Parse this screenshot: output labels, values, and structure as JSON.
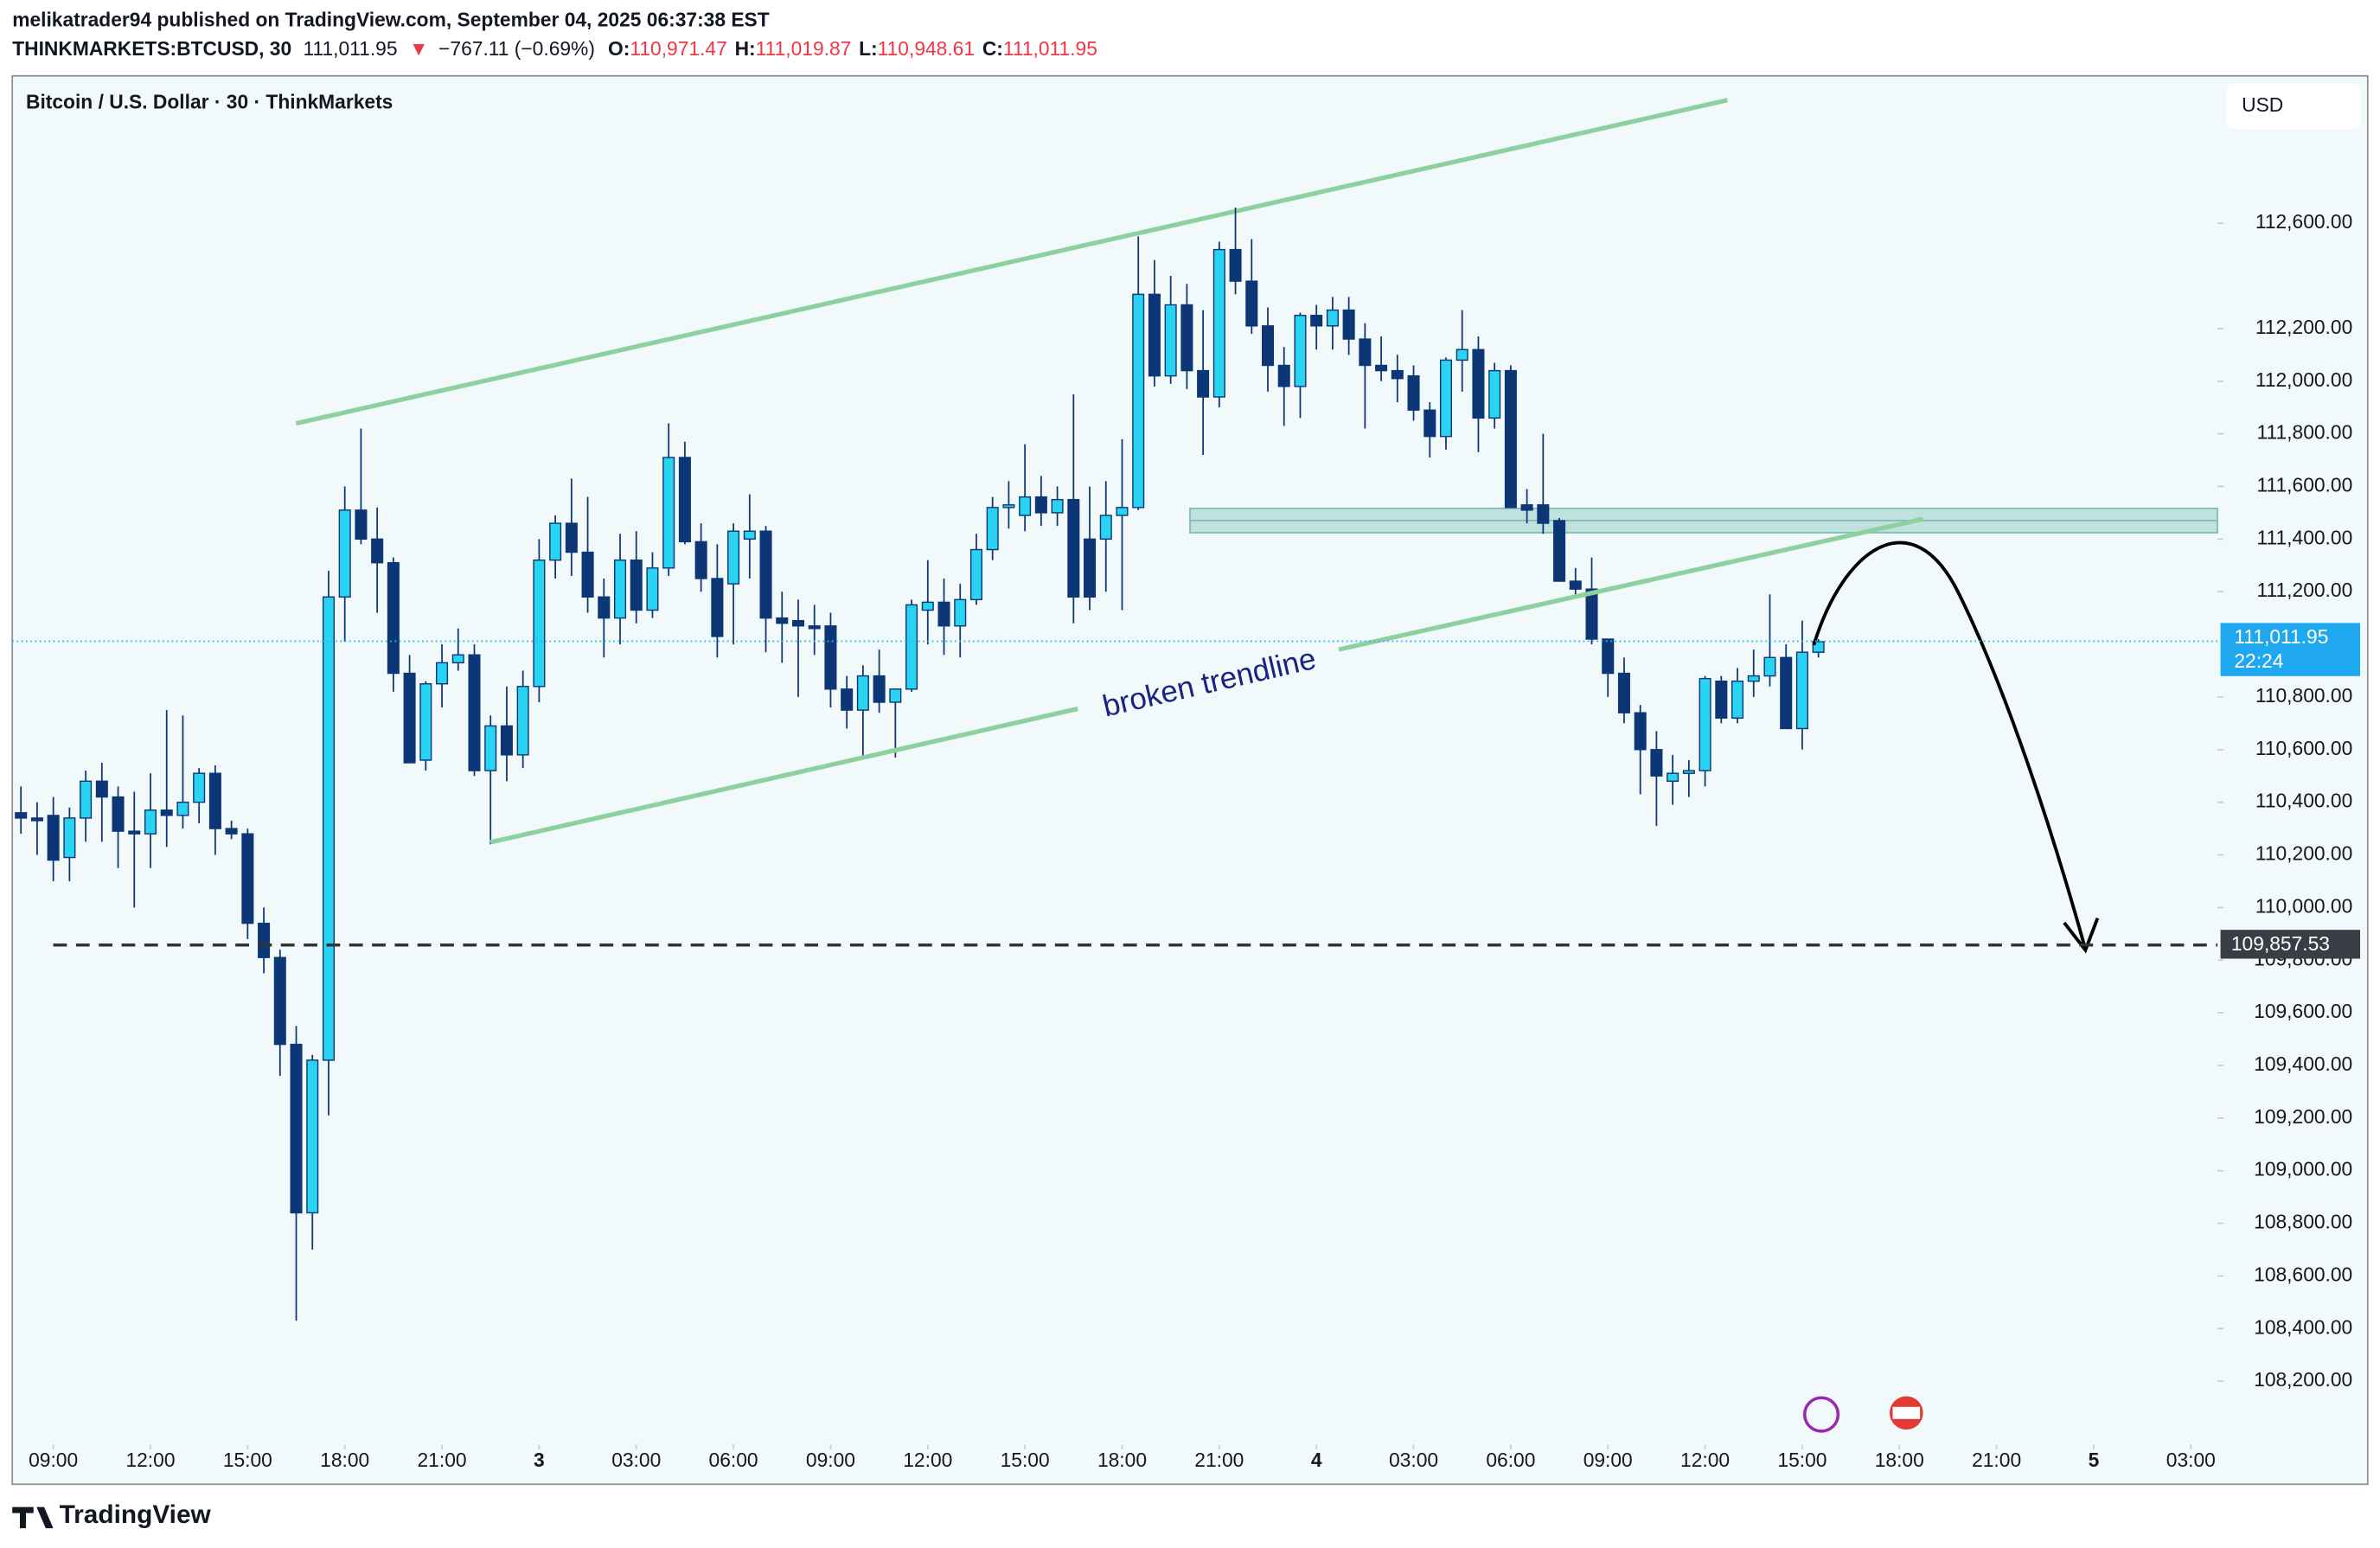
{
  "chart_data": {
    "type": "candlestick",
    "publisher_line": "melikatrader94 published on TradingView.com, September 04, 2025 06:37:38 EST",
    "symbol": "THINKMARKETS:BTCUSD, 30",
    "last": "111,011.95",
    "change_arrow": "▼",
    "change": "−767.11 (−0.69%)",
    "ohlc_header": [
      {
        "key": "O:",
        "value": "110,971.47"
      },
      {
        "key": "H:",
        "value": "111,019.87"
      },
      {
        "key": "L:",
        "value": "110,948.61"
      },
      {
        "key": "C:",
        "value": "111,011.95"
      }
    ],
    "title": "Bitcoin / U.S. Dollar · 30 · ThinkMarkets",
    "currency": "USD",
    "annotation": "broken trendline",
    "footer": "TradingView",
    "bull_color": "#29d3f2",
    "bear_color": "#0d3677",
    "ylim": [
      107970,
      113160
    ],
    "yticks": [
      {
        "value": 112600,
        "label": "112,600.00"
      },
      {
        "value": 112200,
        "label": "112,200.00"
      },
      {
        "value": 112000,
        "label": "112,000.00"
      },
      {
        "value": 111800,
        "label": "111,800.00"
      },
      {
        "value": 111600,
        "label": "111,600.00"
      },
      {
        "value": 111400,
        "label": "111,400.00"
      },
      {
        "value": 111200,
        "label": "111,200.00"
      },
      {
        "value": 110800,
        "label": "110,800.00"
      },
      {
        "value": 110600,
        "label": "110,600.00"
      },
      {
        "value": 110400,
        "label": "110,400.00"
      },
      {
        "value": 110200,
        "label": "110,200.00"
      },
      {
        "value": 110000,
        "label": "110,000.00"
      },
      {
        "value": 109800,
        "label": "109,800.00"
      },
      {
        "value": 109600,
        "label": "109,600.00"
      },
      {
        "value": 109400,
        "label": "109,400.00"
      },
      {
        "value": 109200,
        "label": "109,200.00"
      },
      {
        "value": 109000,
        "label": "109,000.00"
      },
      {
        "value": 108800,
        "label": "108,800.00"
      },
      {
        "value": 108600,
        "label": "108,600.00"
      },
      {
        "value": 108400,
        "label": "108,400.00"
      },
      {
        "value": 108200,
        "label": "108,200.00"
      }
    ],
    "xticks": [
      {
        "value": 2,
        "label": "09:00"
      },
      {
        "value": 8,
        "label": "12:00"
      },
      {
        "value": 14,
        "label": "15:00"
      },
      {
        "value": 20,
        "label": "18:00"
      },
      {
        "value": 26,
        "label": "21:00"
      },
      {
        "value": 32,
        "label": "3"
      },
      {
        "value": 38,
        "label": "03:00"
      },
      {
        "value": 44,
        "label": "06:00"
      },
      {
        "value": 50,
        "label": "09:00"
      },
      {
        "value": 56,
        "label": "12:00"
      },
      {
        "value": 62,
        "label": "15:00"
      },
      {
        "value": 68,
        "label": "18:00"
      },
      {
        "value": 74,
        "label": "21:00"
      },
      {
        "value": 80,
        "label": "4"
      },
      {
        "value": 86,
        "label": "03:00"
      },
      {
        "value": 92,
        "label": "06:00"
      },
      {
        "value": 98,
        "label": "09:00"
      },
      {
        "value": 104,
        "label": "12:00"
      },
      {
        "value": 110,
        "label": "15:00"
      },
      {
        "value": 116,
        "label": "18:00"
      },
      {
        "value": 122,
        "label": "21:00"
      },
      {
        "value": 128,
        "label": "5"
      },
      {
        "value": 134,
        "label": "03:00"
      }
    ],
    "last_price": {
      "value": 111011.95,
      "label": "111,011.95"
    },
    "countdown": "22:24",
    "level": {
      "value": 109857.53,
      "label": "109,857.53"
    },
    "ohlc": [
      [
        110360,
        110460,
        110280,
        110340
      ],
      [
        110340,
        110400,
        110200,
        110330
      ],
      [
        110350,
        110420,
        110100,
        110180
      ],
      [
        110190,
        110380,
        110100,
        110340
      ],
      [
        110340,
        110520,
        110250,
        110480
      ],
      [
        110480,
        110550,
        110250,
        110420
      ],
      [
        110420,
        110460,
        110150,
        110290
      ],
      [
        110290,
        110440,
        110000,
        110280
      ],
      [
        110280,
        110510,
        110150,
        110370
      ],
      [
        110370,
        110750,
        110230,
        110350
      ],
      [
        110350,
        110730,
        110300,
        110400
      ],
      [
        110400,
        110530,
        110320,
        110510
      ],
      [
        110510,
        110540,
        110200,
        110300
      ],
      [
        110300,
        110330,
        110260,
        110280
      ],
      [
        110280,
        110300,
        109880,
        109940
      ],
      [
        109940,
        110000,
        109750,
        109810
      ],
      [
        109810,
        109840,
        109360,
        109480
      ],
      [
        109480,
        109550,
        108430,
        108840
      ],
      [
        108840,
        109440,
        108700,
        109420
      ],
      [
        109420,
        111280,
        109210,
        111180
      ],
      [
        111180,
        111600,
        111010,
        111510
      ],
      [
        111510,
        111820,
        111380,
        111400
      ],
      [
        111400,
        111520,
        111120,
        111310
      ],
      [
        111310,
        111330,
        110820,
        110890
      ],
      [
        110890,
        110960,
        110550,
        110550
      ],
      [
        110560,
        110860,
        110520,
        110850
      ],
      [
        110850,
        111000,
        110760,
        110930
      ],
      [
        110930,
        111060,
        110900,
        110960
      ],
      [
        110960,
        111000,
        110500,
        110520
      ],
      [
        110520,
        110730,
        110240,
        110690
      ],
      [
        110690,
        110840,
        110480,
        110580
      ],
      [
        110580,
        110900,
        110530,
        110840
      ],
      [
        110840,
        111400,
        110780,
        111320
      ],
      [
        111320,
        111490,
        111250,
        111460
      ],
      [
        111460,
        111630,
        111260,
        111350
      ],
      [
        111350,
        111560,
        111120,
        111180
      ],
      [
        111180,
        111250,
        110950,
        111100
      ],
      [
        111100,
        111420,
        111000,
        111320
      ],
      [
        111320,
        111430,
        111080,
        111130
      ],
      [
        111130,
        111350,
        111100,
        111290
      ],
      [
        111290,
        111840,
        111260,
        111710
      ],
      [
        111710,
        111770,
        111380,
        111390
      ],
      [
        111390,
        111460,
        111200,
        111250
      ],
      [
        111250,
        111380,
        110950,
        111030
      ],
      [
        111230,
        111460,
        111000,
        111430
      ],
      [
        111400,
        111570,
        111250,
        111430
      ],
      [
        111430,
        111450,
        110970,
        111100
      ],
      [
        111100,
        111200,
        110930,
        111080
      ],
      [
        111090,
        111170,
        110800,
        111070
      ],
      [
        111070,
        111150,
        110960,
        111060
      ],
      [
        111070,
        111120,
        110760,
        110830
      ],
      [
        110830,
        110880,
        110680,
        110750
      ],
      [
        110750,
        110920,
        110570,
        110880
      ],
      [
        110880,
        110980,
        110740,
        110780
      ],
      [
        110780,
        110820,
        110570,
        110830
      ],
      [
        110830,
        111170,
        110820,
        111150
      ],
      [
        111130,
        111320,
        111000,
        111160
      ],
      [
        111160,
        111250,
        110960,
        111070
      ],
      [
        111070,
        111230,
        110950,
        111170
      ],
      [
        111170,
        111420,
        111150,
        111360
      ],
      [
        111360,
        111560,
        111320,
        111520
      ],
      [
        111520,
        111620,
        111440,
        111530
      ],
      [
        111490,
        111760,
        111430,
        111560
      ],
      [
        111560,
        111640,
        111450,
        111500
      ],
      [
        111500,
        111600,
        111450,
        111550
      ],
      [
        111550,
        111950,
        111080,
        111180
      ],
      [
        111400,
        111600,
        111130,
        111180
      ],
      [
        111400,
        111620,
        111200,
        111490
      ],
      [
        111490,
        111780,
        111130,
        111520
      ],
      [
        111520,
        112550,
        111510,
        112330
      ],
      [
        112330,
        112460,
        111980,
        112020
      ],
      [
        112020,
        112400,
        111990,
        112290
      ],
      [
        112290,
        112370,
        111970,
        112040
      ],
      [
        112040,
        112270,
        111720,
        111940
      ],
      [
        111940,
        112530,
        111900,
        112500
      ],
      [
        112500,
        112660,
        112330,
        112380
      ],
      [
        112380,
        112540,
        112180,
        112210
      ],
      [
        112210,
        112280,
        111960,
        112060
      ],
      [
        112060,
        112130,
        111830,
        111980
      ],
      [
        111980,
        112260,
        111860,
        112250
      ],
      [
        112250,
        112290,
        112120,
        112210
      ],
      [
        112210,
        112320,
        112120,
        112270
      ],
      [
        112270,
        112320,
        112100,
        112160
      ],
      [
        112160,
        112220,
        111820,
        112060
      ],
      [
        112060,
        112170,
        112000,
        112040
      ],
      [
        112040,
        112100,
        111920,
        112010
      ],
      [
        112020,
        112060,
        111850,
        111890
      ],
      [
        111890,
        111920,
        111710,
        111790
      ],
      [
        111790,
        112090,
        111740,
        112080
      ],
      [
        112080,
        112270,
        111960,
        112120
      ],
      [
        112120,
        112170,
        111730,
        111860
      ],
      [
        111860,
        112070,
        111820,
        112040
      ],
      [
        112040,
        112060,
        111520,
        111520
      ],
      [
        111530,
        111590,
        111460,
        111510
      ],
      [
        111530,
        111800,
        111420,
        111460
      ],
      [
        111470,
        111480,
        111240,
        111240
      ],
      [
        111240,
        111290,
        111190,
        111210
      ],
      [
        111210,
        111330,
        111000,
        111020
      ],
      [
        111020,
        111020,
        110800,
        110890
      ],
      [
        110890,
        110950,
        110700,
        110740
      ],
      [
        110740,
        110770,
        110430,
        110600
      ],
      [
        110600,
        110670,
        110310,
        110500
      ],
      [
        110480,
        110580,
        110390,
        110510
      ],
      [
        110510,
        110560,
        110420,
        110520
      ],
      [
        110520,
        110880,
        110460,
        110870
      ],
      [
        110860,
        110880,
        110700,
        110720
      ],
      [
        110720,
        110910,
        110700,
        110860
      ],
      [
        110860,
        110980,
        110800,
        110880
      ],
      [
        110880,
        111190,
        110840,
        110950
      ],
      [
        110950,
        111000,
        110680,
        110680
      ],
      [
        110680,
        111090,
        110600,
        110970
      ],
      [
        110970,
        111020,
        110950,
        111010
      ]
    ]
  }
}
